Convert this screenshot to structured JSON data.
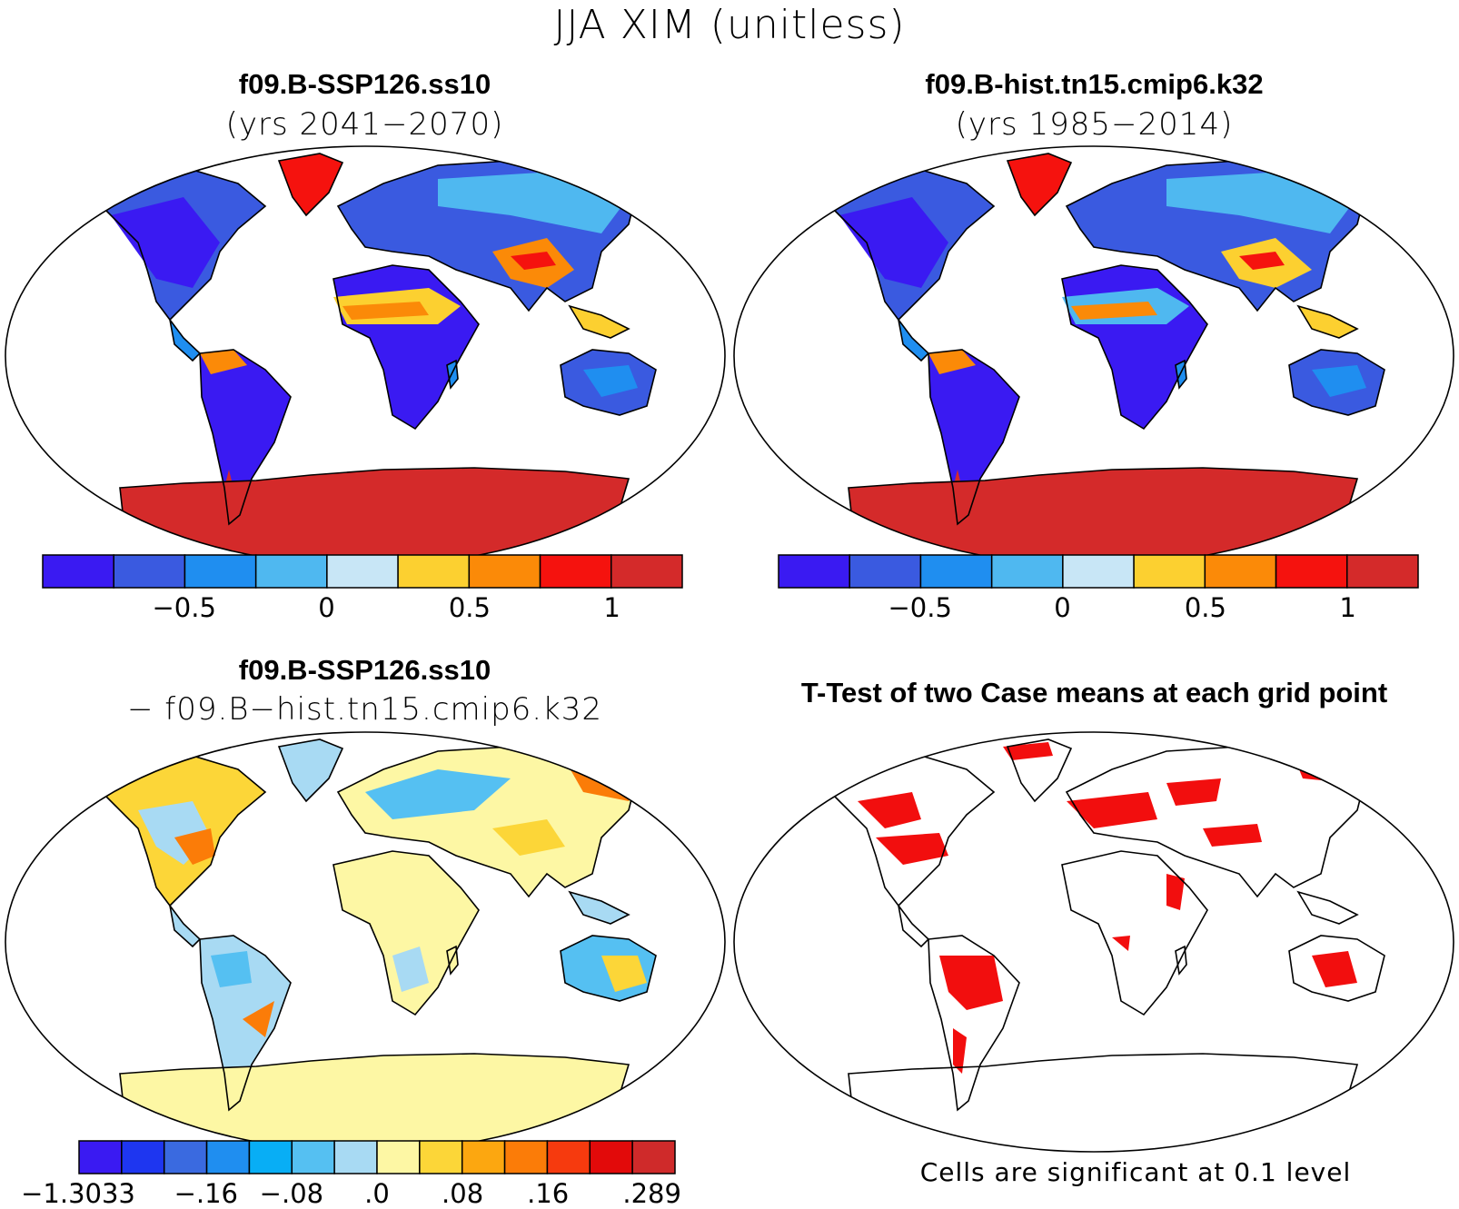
{
  "figure_title": "JJA XIM (unitless)",
  "panels": [
    {
      "title": "f09.B-SSP126.ss10",
      "subtitle": "(yrs 2041−2070)"
    },
    {
      "title": "f09.B-hist.tn15.cmip6.k32",
      "subtitle": "(yrs 1985−2014)"
    },
    {
      "title": "f09.B-SSP126.ss10",
      "subtitle": "− f09.B−hist.tn15.cmip6.k32"
    },
    {
      "title": "T-Test of two Case means at each grid point",
      "subtitle": ""
    }
  ],
  "colorbar_main": {
    "colors": [
      "#3a1af2",
      "#3a5ae0",
      "#1f8ef0",
      "#4fb8f0",
      "#c8e6f6",
      "#fcd030",
      "#fb8a08",
      "#f5120e",
      "#d42a2a"
    ],
    "ticks": [
      "−0.5",
      "0",
      "0.5",
      "1"
    ]
  },
  "colorbar_diff": {
    "colors": [
      "#3a1af2",
      "#1e36f0",
      "#3a6ae0",
      "#1f8ef0",
      "#08aef5",
      "#55c0f2",
      "#a8daf3",
      "#fdf7a4",
      "#fcd638",
      "#fca710",
      "#fb7c08",
      "#f63a0e",
      "#e20a0a",
      "#cf2a2a"
    ],
    "ticks": [
      "−1.3033",
      "−.16",
      "−.08",
      ".0",
      ".08",
      ".16",
      ".289"
    ]
  },
  "significance_note": "Cells are significant at 0.1 level"
}
